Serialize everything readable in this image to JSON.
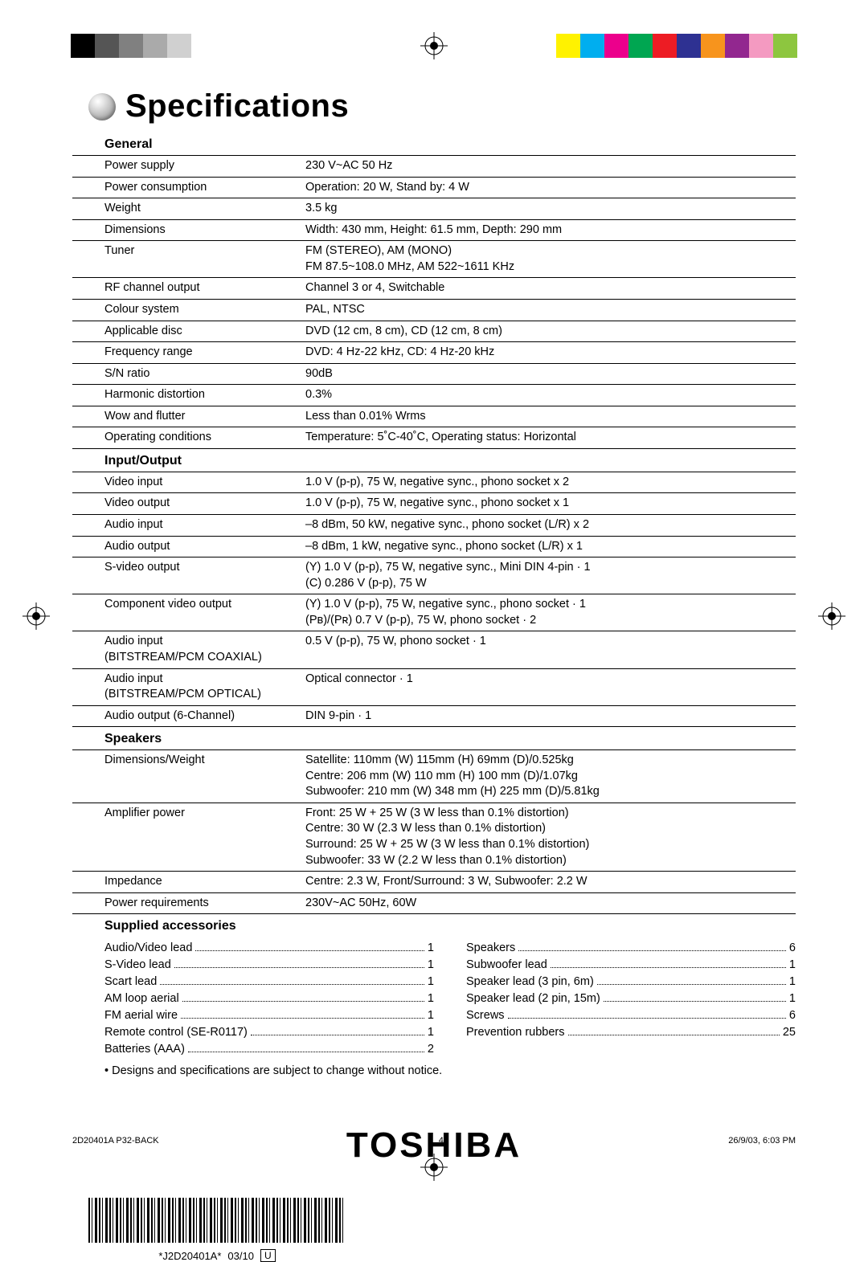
{
  "page": {
    "title": "Specifications",
    "note": "• Designs and specifications are subject to change without notice.",
    "brand": "TOSHIBA"
  },
  "colors": {
    "left_bars": [
      "#000000",
      "#555555",
      "#808080",
      "#aaaaaa",
      "#d0d0d0"
    ],
    "right_bars": [
      "#fff200",
      "#00aeef",
      "#ec008c",
      "#00a651",
      "#ed1c24",
      "#2e3192",
      "#f7941d",
      "#92278f",
      "#f49ac1",
      "#8dc63f"
    ]
  },
  "sections": [
    {
      "title": "General",
      "rows": [
        {
          "k": "Power supply",
          "v": "230 V~AC 50 Hz"
        },
        {
          "k": "Power consumption",
          "v": "Operation: 20 W, Stand by: 4 W"
        },
        {
          "k": "Weight",
          "v": "3.5 kg"
        },
        {
          "k": "Dimensions",
          "v": "Width: 430 mm, Height: 61.5 mm, Depth: 290 mm"
        },
        {
          "k": "Tuner",
          "v": "FM (STEREO), AM (MONO)\nFM 87.5~108.0 MHz, AM 522~1611 KHz"
        },
        {
          "k": "RF channel output",
          "v": "Channel 3 or 4, Switchable"
        },
        {
          "k": "Colour system",
          "v": "PAL, NTSC"
        },
        {
          "k": "Applicable disc",
          "v": "DVD (12 cm, 8 cm), CD (12 cm, 8 cm)"
        },
        {
          "k": "Frequency range",
          "v": "DVD: 4 Hz-22 kHz, CD: 4 Hz-20 kHz"
        },
        {
          "k": "S/N ratio",
          "v": "90dB"
        },
        {
          "k": "Harmonic distortion",
          "v": "0.3%"
        },
        {
          "k": "Wow and flutter",
          "v": "Less than 0.01% Wrms"
        },
        {
          "k": "Operating conditions",
          "v": "Temperature: 5˚C-40˚C, Operating status: Horizontal"
        }
      ]
    },
    {
      "title": "Input/Output",
      "rows": [
        {
          "k": "Video input",
          "v": "1.0 V (p-p), 75 W, negative sync., phono socket x 2"
        },
        {
          "k": "Video output",
          "v": "1.0 V (p-p), 75 W, negative sync., phono socket x 1"
        },
        {
          "k": "Audio input",
          "v": "–8 dBm, 50 kW, negative sync., phono socket (L/R) x 2"
        },
        {
          "k": "Audio output",
          "v": "–8 dBm, 1 kW, negative sync., phono socket (L/R) x 1"
        },
        {
          "k": "S-video output",
          "v": "(Y) 1.0 V (p-p), 75 W, negative sync., Mini DIN 4-pin · 1\n(C) 0.286 V (p-p), 75 W"
        },
        {
          "k": "Component video output",
          "v": "(Y) 1.0 V (p-p), 75 W, negative sync., phono socket · 1\n(Pʙ)/(Pʀ) 0.7 V (p-p), 75 W, phono socket · 2"
        },
        {
          "k": "Audio input\n(BITSTREAM/PCM COAXIAL)",
          "v": "0.5 V (p-p), 75 W, phono socket · 1"
        },
        {
          "k": "Audio input\n(BITSTREAM/PCM OPTICAL)",
          "v": "Optical connector · 1"
        },
        {
          "k": "Audio output (6-Channel)",
          "v": "DIN 9-pin · 1"
        }
      ]
    },
    {
      "title": "Speakers",
      "rows": [
        {
          "k": "Dimensions/Weight",
          "v": "Satellite: 110mm (W) 115mm (H) 69mm (D)/0.525kg\nCentre: 206 mm (W) 110 mm (H) 100 mm (D)/1.07kg\nSubwoofer: 210 mm (W) 348 mm (H) 225 mm (D)/5.81kg"
        },
        {
          "k": "Amplifier power",
          "v": "Front: 25 W + 25 W (3 W less than 0.1% distortion)\nCentre: 30 W (2.3 W less than 0.1% distortion)\nSurround: 25 W + 25 W (3 W less than 0.1% distortion)\nSubwoofer: 33 W (2.2 W less than 0.1% distortion)"
        },
        {
          "k": "Impedance",
          "v": "Centre: 2.3 W, Front/Surround: 3 W, Subwoofer: 2.2 W"
        },
        {
          "k": "Power requirements",
          "v": "230V~AC 50Hz, 60W"
        }
      ]
    }
  ],
  "accessories": {
    "title": "Supplied accessories",
    "left": [
      {
        "k": "Audio/Video lead",
        "v": "1"
      },
      {
        "k": "S-Video lead",
        "v": "1"
      },
      {
        "k": "Scart lead",
        "v": "1"
      },
      {
        "k": "AM loop aerial",
        "v": "1"
      },
      {
        "k": "FM aerial wire",
        "v": "1"
      },
      {
        "k": "Remote control (SE-R0117)",
        "v": "1"
      },
      {
        "k": "Batteries (AAA)",
        "v": "2"
      }
    ],
    "right": [
      {
        "k": "Speakers",
        "v": "6"
      },
      {
        "k": "Subwoofer lead",
        "v": "1"
      },
      {
        "k": "Speaker lead (3 pin, 6m)",
        "v": "1"
      },
      {
        "k": "Speaker lead (2 pin, 15m)",
        "v": "1"
      },
      {
        "k": "Screws",
        "v": "6"
      },
      {
        "k": "Prevention rubbers",
        "v": "25"
      }
    ]
  },
  "barcode": {
    "text": "*J2D20401A*",
    "rev": "03/10",
    "box": "U"
  },
  "footer": {
    "left": "2D20401A P32-BACK",
    "page": "40",
    "right": "26/9/03, 6:03 PM"
  }
}
